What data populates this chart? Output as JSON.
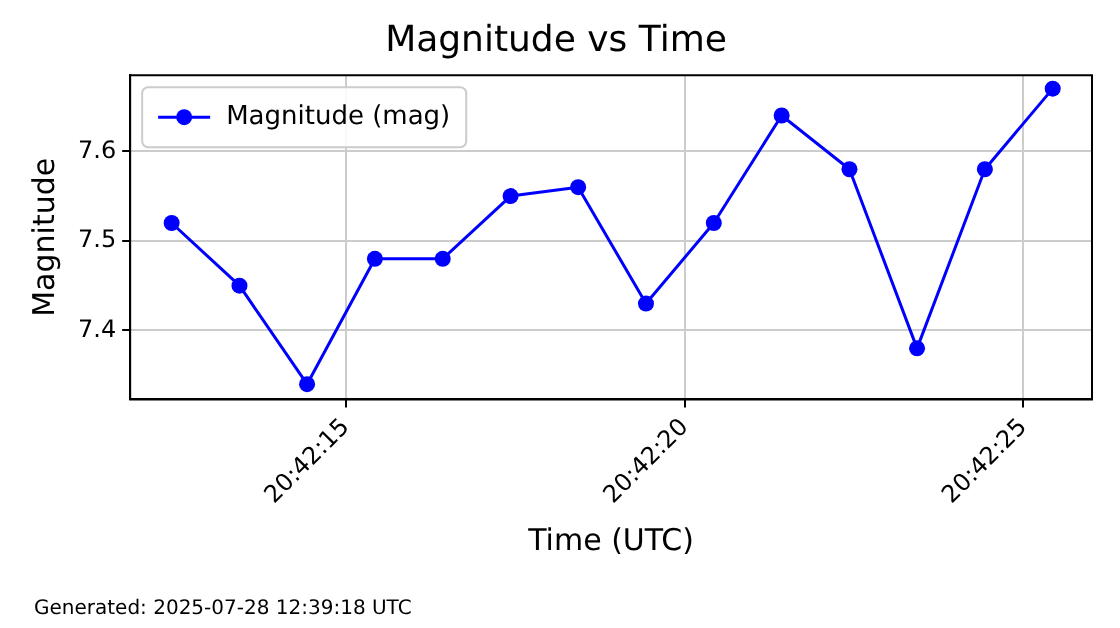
{
  "chart_data": {
    "type": "line",
    "title": "Magnitude vs Time",
    "xlabel": "Time (UTC)",
    "ylabel": "Magnitude",
    "x": [
      20.703453,
      20.703731,
      20.704008,
      20.704286,
      20.704564,
      20.704842,
      20.705119,
      20.705397,
      20.705675,
      20.705953,
      20.706231,
      20.706508,
      20.706786,
      20.707064
    ],
    "series": [
      {
        "name": "Magnitude (mag)",
        "color": "#0000ff",
        "values": [
          7.52,
          7.45,
          7.34,
          7.48,
          7.48,
          7.55,
          7.56,
          7.43,
          7.52,
          7.64,
          7.58,
          7.38,
          7.58,
          7.67
        ]
      }
    ],
    "xlim": [
      20.703283,
      20.707225
    ],
    "xticks": [
      {
        "value": 20.704167,
        "label": "20:42:15"
      },
      {
        "value": 20.705556,
        "label": "20:42:20"
      },
      {
        "value": 20.706944,
        "label": "20:42:25"
      }
    ],
    "ylim": [
      7.323,
      7.685
    ],
    "yticks": [
      7.4,
      7.5,
      7.6
    ],
    "grid": true,
    "legend": "top left",
    "marker": "circle",
    "line_style": "solid",
    "annotations": [
      "Generated: 2025-07-28 12:39:18 UTC"
    ]
  }
}
